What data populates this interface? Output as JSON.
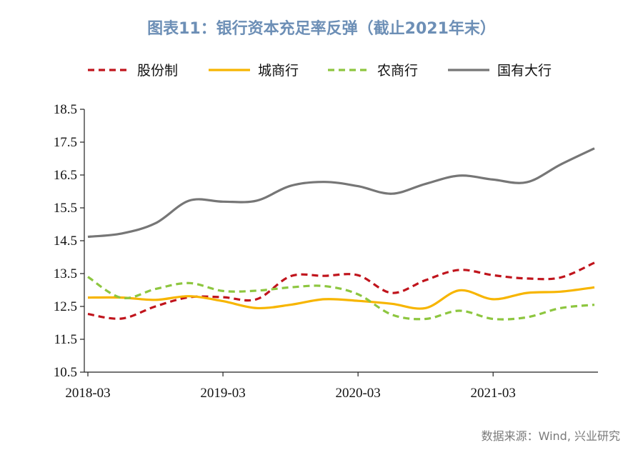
{
  "title": "图表11：银行资本充足率反弹（截止2021年末）",
  "source": "数据来源：Wind, 兴业研究",
  "colors": {
    "title": "#6d8fb6",
    "source": "#7a7a7a",
    "axis": "#222222"
  },
  "chart_data": {
    "type": "line",
    "title": "图表11：银行资本充足率反弹（截止2021年末）",
    "xlabel": "",
    "ylabel": "",
    "x": [
      "2018-03",
      "2018-06",
      "2018-09",
      "2018-12",
      "2019-03",
      "2019-06",
      "2019-09",
      "2019-12",
      "2020-03",
      "2020-06",
      "2020-09",
      "2020-12",
      "2021-03",
      "2021-06",
      "2021-09",
      "2021-12"
    ],
    "x_tick_labels": [
      "2018-03",
      "2019-03",
      "2020-03",
      "2021-03"
    ],
    "y_tick_labels": [
      "10.5",
      "11.5",
      "12.5",
      "13.5",
      "14.5",
      "15.5",
      "16.5",
      "17.5",
      "18.5"
    ],
    "ylim": [
      10.5,
      18.5
    ],
    "grid": false,
    "legend_position": "top",
    "series": [
      {
        "name": "股份制",
        "color": "#c0141c",
        "dash": "dashed",
        "values": [
          12.27,
          12.13,
          12.5,
          12.78,
          12.78,
          12.72,
          13.42,
          13.43,
          13.45,
          12.91,
          13.3,
          13.61,
          13.45,
          13.35,
          13.38,
          13.83
        ]
      },
      {
        "name": "城商行",
        "color": "#f7b500",
        "dash": "solid",
        "values": [
          12.77,
          12.77,
          12.7,
          12.81,
          12.66,
          12.45,
          12.55,
          12.72,
          12.67,
          12.58,
          12.45,
          12.99,
          12.72,
          12.91,
          12.95,
          13.08
        ]
      },
      {
        "name": "农商行",
        "color": "#8dc63f",
        "dash": "dashed",
        "values": [
          13.4,
          12.76,
          13.03,
          13.21,
          12.97,
          12.98,
          13.08,
          13.12,
          12.87,
          12.25,
          12.12,
          12.37,
          12.12,
          12.17,
          12.45,
          12.55
        ]
      },
      {
        "name": "国有大行",
        "color": "#767676",
        "dash": "solid",
        "values": [
          14.62,
          14.72,
          15.03,
          15.72,
          15.69,
          15.72,
          16.17,
          16.29,
          16.16,
          15.93,
          16.23,
          16.48,
          16.36,
          16.28,
          16.82,
          17.31
        ]
      }
    ]
  }
}
